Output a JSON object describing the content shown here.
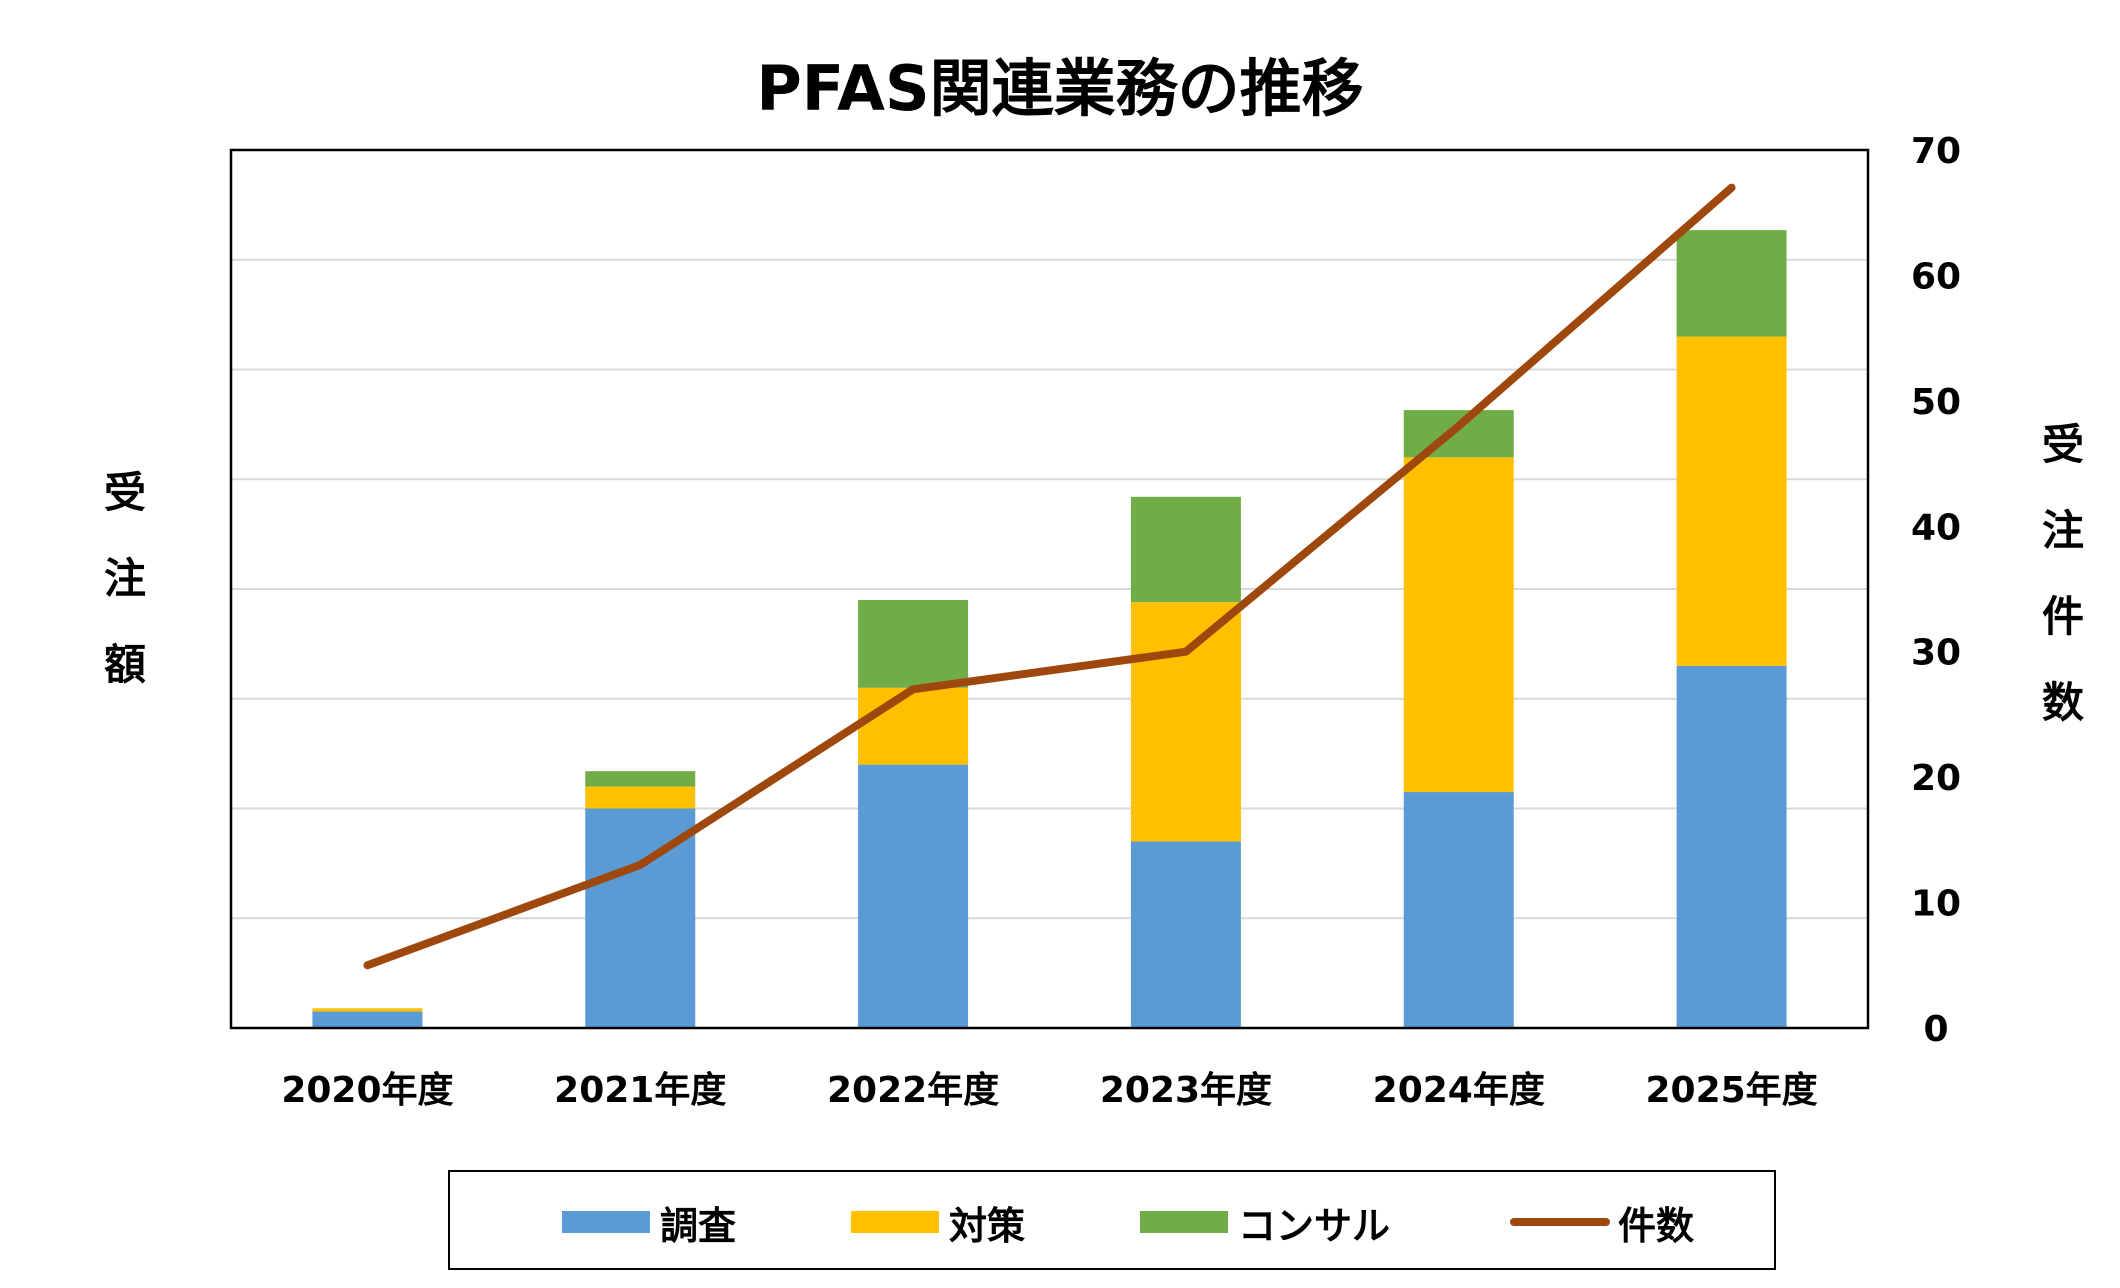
{
  "colors": {
    "survey": "#5b9bd5",
    "measures": "#ffc000",
    "consulting": "#70ad47",
    "count": "#9e480e",
    "grid": "#d9d9d9"
  },
  "chart_data": {
    "type": "bar",
    "title": "PFAS関連業務の推移",
    "ylabel_left": "受注額",
    "ylabel_right": "受注件数",
    "categories": [
      "2020年度",
      "2021年度",
      "2022年度",
      "2023年度",
      "2024年度",
      "2025年度"
    ],
    "stacked": true,
    "y_left_range": [
      0,
      8
    ],
    "y_right_range": [
      0,
      70
    ],
    "y_right_ticks": [
      "0",
      "10",
      "20",
      "30",
      "40",
      "50",
      "60",
      "70"
    ],
    "grid": true,
    "legend_position": "bottom",
    "series": [
      {
        "name": "調査",
        "type": "bar",
        "axis": "left",
        "values": [
          0.15,
          2.0,
          2.4,
          1.7,
          2.15,
          3.3
        ]
      },
      {
        "name": "対策",
        "type": "bar",
        "axis": "left",
        "values": [
          0.03,
          0.2,
          0.7,
          2.18,
          3.05,
          3.0
        ]
      },
      {
        "name": "コンサル",
        "type": "bar",
        "axis": "left",
        "values": [
          0.0,
          0.14,
          0.8,
          0.96,
          0.43,
          0.97
        ]
      },
      {
        "name": "件数",
        "type": "line",
        "axis": "right",
        "values": [
          5,
          13,
          27,
          30,
          48,
          67
        ]
      }
    ]
  }
}
